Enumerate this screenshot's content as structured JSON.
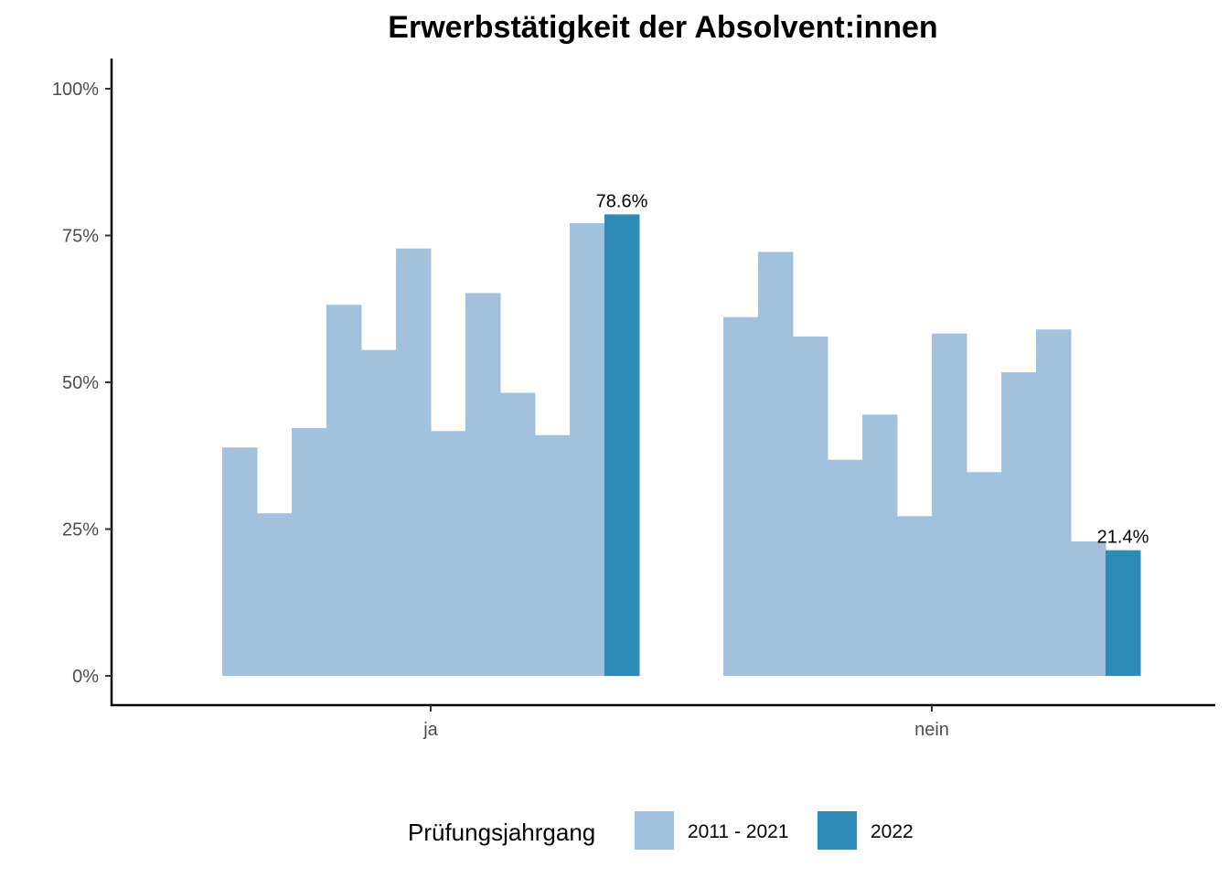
{
  "chart_data": {
    "type": "bar",
    "title": "Erwerbstätigkeit der Absolvent:innen",
    "xlabel": "",
    "ylabel": "",
    "ylim": [
      0,
      1.05
    ],
    "y_ticks": [
      "0%",
      "25%",
      "50%",
      "75%",
      "100%"
    ],
    "categories": [
      "ja",
      "nein"
    ],
    "legend": {
      "title": "Prüfungsjahrgang",
      "position": "bottom",
      "entries": [
        {
          "label": "2011 - 2021",
          "color": "#a1c1dd"
        },
        {
          "label": "2022",
          "color": "#2e8bb8"
        }
      ]
    },
    "groups": [
      {
        "category": "ja",
        "values": [
          0.389,
          0.277,
          0.422,
          0.632,
          0.555,
          0.728,
          0.417,
          0.652,
          0.482,
          0.41,
          0.771,
          0.786
        ],
        "series": [
          "2011 - 2021",
          "2011 - 2021",
          "2011 - 2021",
          "2011 - 2021",
          "2011 - 2021",
          "2011 - 2021",
          "2011 - 2021",
          "2011 - 2021",
          "2011 - 2021",
          "2011 - 2021",
          "2011 - 2021",
          "2022"
        ],
        "labels": [
          "",
          "",
          "",
          "",
          "",
          "",
          "",
          "",
          "",
          "",
          "",
          "78.6%"
        ]
      },
      {
        "category": "nein",
        "values": [
          0.611,
          0.722,
          0.578,
          0.368,
          0.445,
          0.272,
          0.583,
          0.347,
          0.517,
          0.59,
          0.229,
          0.214
        ],
        "series": [
          "2011 - 2021",
          "2011 - 2021",
          "2011 - 2021",
          "2011 - 2021",
          "2011 - 2021",
          "2011 - 2021",
          "2011 - 2021",
          "2011 - 2021",
          "2011 - 2021",
          "2011 - 2021",
          "2011 - 2021",
          "2022"
        ],
        "labels": [
          "",
          "",
          "",
          "",
          "",
          "",
          "",
          "",
          "",
          "",
          "",
          "21.4%"
        ]
      }
    ]
  }
}
